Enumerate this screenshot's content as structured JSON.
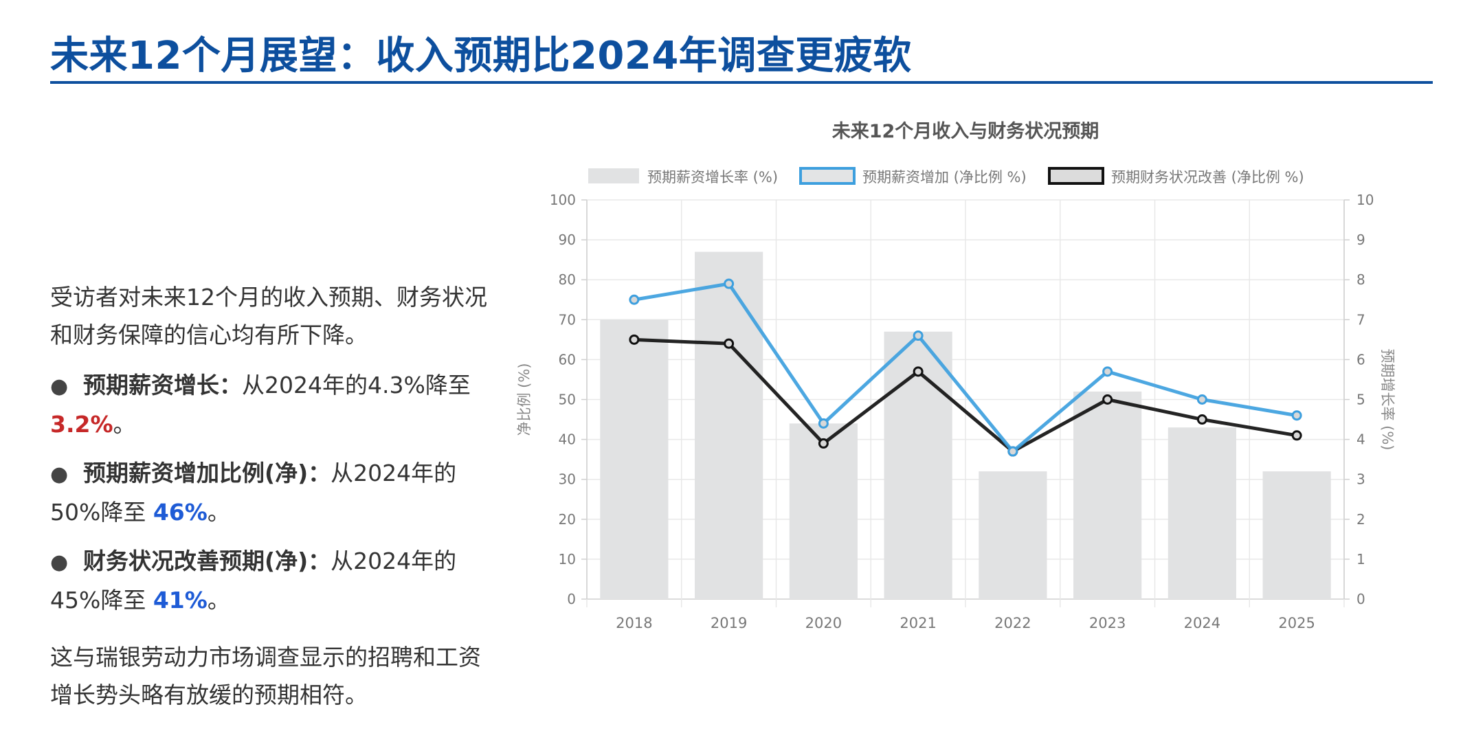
{
  "header": {
    "title": "未来12个月展望：收入预期比2024年调查更疲软"
  },
  "left_panel": {
    "intro": "受访者对未来12个月的收入预期、财务状况和财务保障的信心均有所下降。",
    "bullets": [
      {
        "label": "预期薪资增长：",
        "text_before": "从2024年的4.3%降至 ",
        "value": "3.2%",
        "text_after": "。"
      },
      {
        "label": "预期薪资增加比例(净)：",
        "text_before": "从2024年的50%降至 ",
        "value": "46%",
        "text_after": "。"
      },
      {
        "label": "财务状况改善预期(净)：",
        "text_before": "从2024年的45%降至 ",
        "value": "41%",
        "text_after": "。"
      }
    ],
    "outro": "这与瑞银劳动力市场调查显示的招聘和工资增长势头略有放缓的预期相符。"
  },
  "colors": {
    "title": "#0d4f9e",
    "bar": "#e1e2e3",
    "line_salary_increase": "#3d9fde",
    "line_financial": "#111111",
    "highlight_red": "#c62828",
    "highlight_blue": "#1e5bd6"
  },
  "chart_data": {
    "type": "bar",
    "title": "未来12个月收入与财务状况预期",
    "categories": [
      "2018",
      "2019",
      "2020",
      "2021",
      "2022",
      "2023",
      "2024",
      "2025"
    ],
    "series": [
      {
        "name": "预期薪资增长率 (%)",
        "kind": "bar",
        "axis": "right",
        "values": [
          7.0,
          8.7,
          4.4,
          6.7,
          3.2,
          5.2,
          4.3,
          3.2
        ]
      },
      {
        "name": "预期薪资增加 (净比例 %)",
        "kind": "line",
        "axis": "left",
        "values": [
          75,
          79,
          44,
          66,
          37,
          57,
          50,
          46
        ]
      },
      {
        "name": "预期财务状况改善 (净比例 %)",
        "kind": "line",
        "axis": "left",
        "values": [
          65,
          64,
          39,
          57,
          37,
          50,
          45,
          41
        ]
      }
    ],
    "ylabel": "净比例 (%)",
    "y2label": "预期增长率 (%)",
    "ylim": [
      0,
      100
    ],
    "y2lim": [
      0,
      10
    ],
    "yticks": [
      "0",
      "10",
      "20",
      "30",
      "40",
      "50",
      "60",
      "70",
      "80",
      "90",
      "100"
    ],
    "y2ticks": [
      "0",
      "1",
      "2",
      "3",
      "4",
      "5",
      "6",
      "7",
      "8",
      "9",
      "10"
    ],
    "grid": true,
    "legend": "top"
  }
}
